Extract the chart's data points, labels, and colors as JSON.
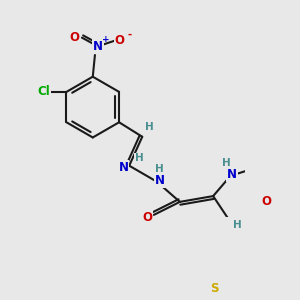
{
  "bg_color": "#e8e8e8",
  "bond_color": "#1a1a1a",
  "bond_width": 1.5,
  "atom_colors": {
    "N": "#0000cc",
    "O": "#cc0000",
    "S": "#ccaa00",
    "Cl": "#00aa00",
    "H": "#4a9090",
    "C": "#1a1a1a"
  },
  "font_size_atom": 8.5,
  "font_size_small": 6.5,
  "font_size_H": 7.5
}
